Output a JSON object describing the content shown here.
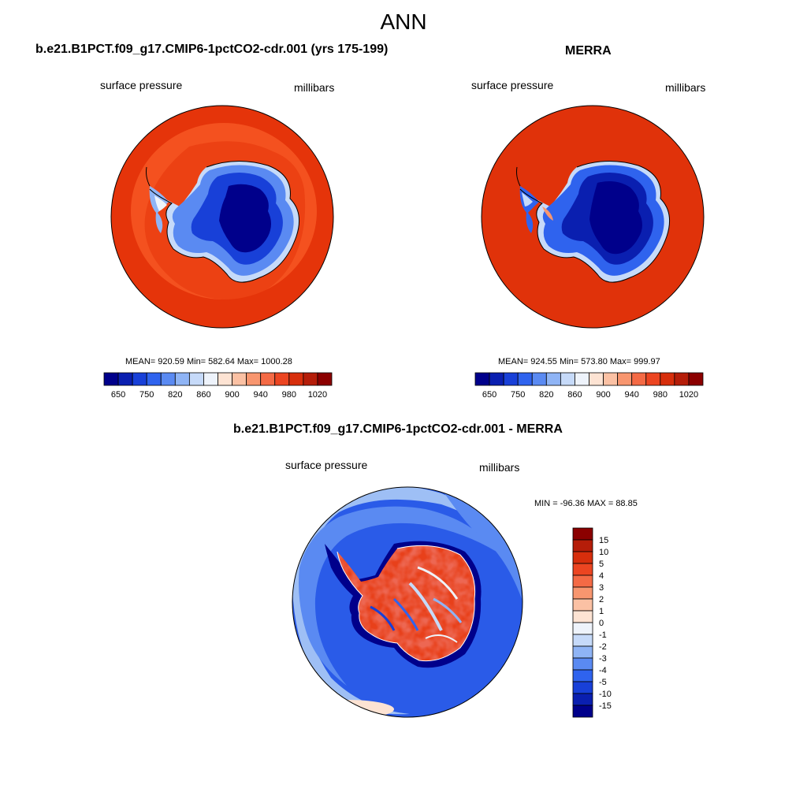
{
  "figure": {
    "title": "ANN"
  },
  "panels": [
    {
      "title": "b.e21.B1PCT.f09_g17.CMIP6-1pctCO2-cdr.001 (yrs 175-199)",
      "left_label": "surface pressure",
      "right_label": "millibars",
      "stats": "MEAN= 920.59  Min= 582.64  Max= 1000.28",
      "colorbar": {
        "orientation": "horizontal",
        "tick_labels": [
          "650",
          "750",
          "820",
          "860",
          "900",
          "940",
          "980",
          "1020"
        ]
      }
    },
    {
      "title": "MERRA",
      "left_label": "surface pressure",
      "right_label": "millibars",
      "stats": "MEAN= 924.55  Min= 573.80  Max= 999.97",
      "colorbar": {
        "orientation": "horizontal",
        "tick_labels": [
          "650",
          "750",
          "820",
          "860",
          "900",
          "940",
          "980",
          "1020"
        ]
      }
    },
    {
      "title": "b.e21.B1PCT.f09_g17.CMIP6-1pctCO2-cdr.001 - MERRA",
      "left_label": "surface pressure",
      "right_label": "millibars",
      "stats": "MIN = -96.36 MAX =  88.85",
      "colorbar": {
        "orientation": "vertical",
        "tick_labels": [
          "15",
          "10",
          "5",
          "4",
          "3",
          "2",
          "1",
          "0",
          "-1",
          "-2",
          "-3",
          "-4",
          "-5",
          "-10",
          "-15"
        ]
      }
    }
  ],
  "colors": {
    "abs_palette": [
      "#00008b",
      "#0a1fb0",
      "#1840d8",
      "#2f63ee",
      "#5a8af2",
      "#8fb4f5",
      "#c6daf9",
      "#eef3fb",
      "#fde3d3",
      "#fbc1a4",
      "#f8966f",
      "#f46a45",
      "#ec4521",
      "#d72e0c",
      "#b51d09",
      "#8b0000"
    ],
    "diff_palette": [
      "#8b0000",
      "#b51d09",
      "#d72e0c",
      "#ec4521",
      "#f46a45",
      "#f8966f",
      "#fbc1a4",
      "#fde3d3",
      "#eef3fb",
      "#c6daf9",
      "#8fb4f5",
      "#5a8af2",
      "#2f63ee",
      "#1840d8",
      "#0a1fb0",
      "#00008b"
    ],
    "ocean_model": "#e5340a",
    "ocean_model_inner": "#f4511f",
    "ocean_merra": "#e0320a",
    "diff_ocean": "#2a5be8",
    "diff_ocean_light": "#9ebff5"
  }
}
